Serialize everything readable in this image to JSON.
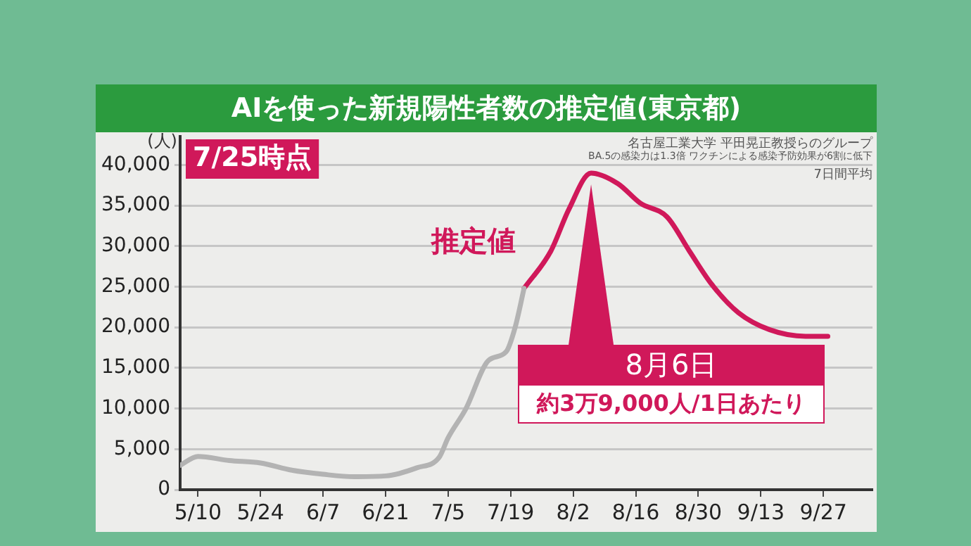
{
  "chart_data": {
    "type": "line",
    "title": "AIを使った新規陽性者数の推定値(東京都)",
    "ylabel": "(人)",
    "series": [
      {
        "color": "#b3b3b3",
        "x": [
          "--05-06",
          "--05-10",
          "--05-17",
          "--05-24",
          "--05-31",
          "--06-07",
          "--06-14",
          "--06-21",
          "--06-28",
          "--07-03",
          "--07-05",
          "--07-09",
          "--07-14",
          "--07-18",
          "--07-20",
          "--07-22"
        ],
        "values": [
          3000,
          4100,
          3600,
          3300,
          2400,
          1900,
          1600,
          1700,
          2700,
          4000,
          6400,
          10000,
          15900,
          17000,
          20000,
          24800
        ]
      },
      {
        "name": "推定値",
        "color": "#d0185a",
        "x": [
          "--07-22",
          "--07-28",
          "--08-01",
          "--08-06",
          "--08-12",
          "--08-17",
          "--08-23",
          "--08-28",
          "--09-02",
          "--09-08",
          "--09-15",
          "--09-23",
          "--09-28"
        ],
        "values": [
          24800,
          29400,
          34500,
          39000,
          37700,
          35300,
          33600,
          29400,
          25300,
          21800,
          19700,
          18900,
          18900
        ]
      }
    ],
    "xlim": [
      "--05-06",
      "--10-08"
    ],
    "xticks": [
      {
        "value": "--05-10",
        "label": "5/10"
      },
      {
        "value": "--05-24",
        "label": "5/24"
      },
      {
        "value": "--06-07",
        "label": "6/7"
      },
      {
        "value": "--06-21",
        "label": "6/21"
      },
      {
        "value": "--07-05",
        "label": "7/5"
      },
      {
        "value": "--07-19",
        "label": "7/19"
      },
      {
        "value": "--08-02",
        "label": "8/2"
      },
      {
        "value": "--08-16",
        "label": "8/16"
      },
      {
        "value": "--08-30",
        "label": "8/30"
      },
      {
        "value": "--09-13",
        "label": "9/13"
      },
      {
        "value": "--09-27",
        "label": "9/27"
      }
    ],
    "ylim": [
      0,
      43500
    ],
    "yticks": [
      0,
      {
        "value": 5000,
        "label": "5,000"
      },
      {
        "value": 10000,
        "label": "10,000"
      },
      {
        "value": 15000,
        "label": "15,000"
      },
      {
        "value": 20000,
        "label": "20,000"
      },
      {
        "value": 25000,
        "label": "25,000"
      },
      {
        "value": 30000,
        "label": "30,000"
      },
      {
        "value": 35000,
        "label": "35,000"
      },
      {
        "value": 40000,
        "label": "40,000"
      }
    ],
    "grid": "y",
    "legend": false,
    "marker": "none",
    "line_style": "solid",
    "annotations": [
      "7/25時点",
      {
        "text": "8月6日",
        "x": "--08-06",
        "y": 39000
      },
      "約3万9,000人/1日あたり",
      "名古屋工業大学 平田晃正教授らのグループ",
      "BA.5の感染力は1.3倍 ワクチンによる感染予防効果が6割に低下",
      "7日間平均"
    ]
  }
}
